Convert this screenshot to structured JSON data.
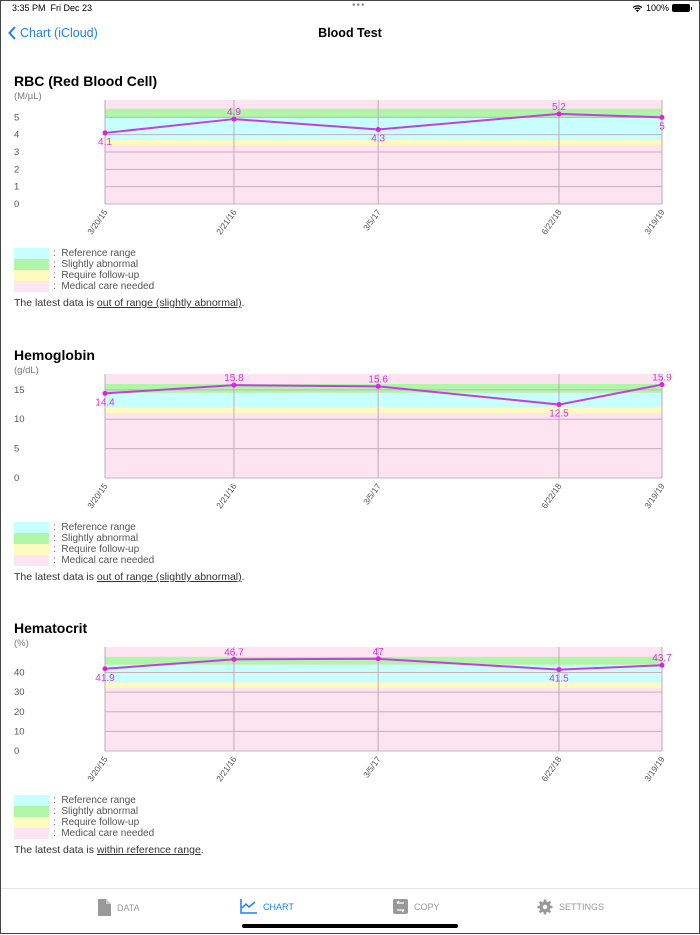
{
  "status_bar": {
    "time": "3:35 PM",
    "date": "Fri Dec 23",
    "battery": "100%"
  },
  "nav": {
    "back_label": "Chart (iCloud)",
    "title": "Blood Test"
  },
  "legend": [
    {
      "label": "Reference range",
      "color": "#c8ffff"
    },
    {
      "label": "Slightly abnormal",
      "color": "#b0f5a8"
    },
    {
      "label": "Require follow-up",
      "color": "#fefac0"
    },
    {
      "label": "Medical care needed",
      "color": "#fde4f0"
    }
  ],
  "summary_prefix": "The latest data is ",
  "colors": {
    "line": "#c040e0",
    "point": "#e020e0",
    "label": "#e030e0",
    "accent": "#1e7ff5"
  },
  "chart_data": [
    {
      "type": "line",
      "title": "RBC (Red Blood Cell)",
      "ylabel": "(M/µL)",
      "x": [
        "3/20/15",
        "2/21/16",
        "3/5/17",
        "6/22/18",
        "3/19/19"
      ],
      "values": [
        4.1,
        4.9,
        4.3,
        5.2,
        5
      ],
      "labels": [
        "4.1",
        "4.9",
        "4.3",
        "5.2",
        "5"
      ],
      "ylim": [
        0,
        6
      ],
      "yticks": [
        0,
        1,
        2,
        3,
        4,
        5
      ],
      "bands": {
        "reference": [
          3.7,
          5.0
        ],
        "slightly_abnormal": [
          5.0,
          5.5
        ],
        "follow_up": [
          3.4,
          3.7
        ]
      },
      "summary": "out of range (slightly abnormal)",
      "grid": true
    },
    {
      "type": "line",
      "title": "Hemoglobin",
      "ylabel": "(g/dL)",
      "x": [
        "3/20/15",
        "2/21/16",
        "3/5/17",
        "6/22/18",
        "3/19/19"
      ],
      "values": [
        14.4,
        15.8,
        15.6,
        12.5,
        15.9
      ],
      "labels": [
        "14.4",
        "15.8",
        "15.6",
        "12.5",
        "15.9"
      ],
      "ylim": [
        0,
        17.7
      ],
      "yticks": [
        0,
        5,
        10,
        15
      ],
      "bands": {
        "reference": [
          12.0,
          14.5
        ],
        "slightly_abnormal": [
          14.5,
          16.0
        ],
        "follow_up": [
          11.0,
          12.0
        ]
      },
      "summary": "out of range (slightly abnormal)",
      "grid": true
    },
    {
      "type": "line",
      "title": "Hematocrit",
      "ylabel": "(%)",
      "x": [
        "3/20/15",
        "2/21/16",
        "3/5/17",
        "6/22/18",
        "3/19/19"
      ],
      "values": [
        41.9,
        46.7,
        47,
        41.5,
        43.7
      ],
      "labels": [
        "41.9",
        "46.7",
        "47",
        "41.5",
        "43.7"
      ],
      "ylim": [
        0,
        53
      ],
      "yticks": [
        0,
        10,
        20,
        30,
        40
      ],
      "bands": {
        "reference": [
          35,
          44
        ],
        "slightly_abnormal": [
          44,
          48
        ],
        "follow_up": [
          32,
          35
        ]
      },
      "summary": "within reference range",
      "grid": true
    }
  ],
  "tabs": [
    {
      "label": "DATA",
      "icon": "document-icon",
      "active": false
    },
    {
      "label": "CHART",
      "icon": "chart-icon",
      "active": true
    },
    {
      "label": "COPY",
      "icon": "copy-icon",
      "active": false
    },
    {
      "label": "SETTINGS",
      "icon": "gear-icon",
      "active": false
    }
  ]
}
